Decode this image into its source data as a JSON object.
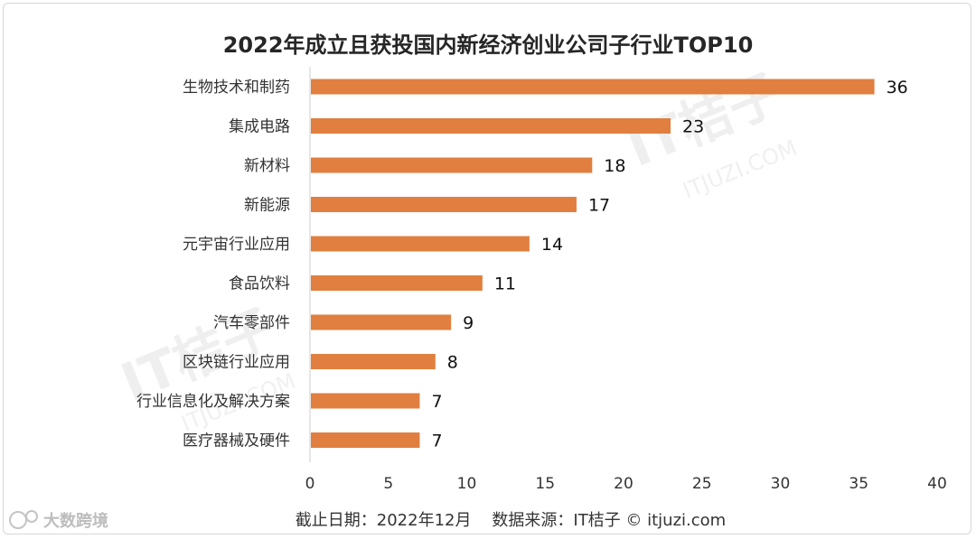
{
  "chart_data": {
    "type": "bar",
    "orientation": "horizontal",
    "title": "2022年成立且获投国内新经济创业公司子行业TOP10",
    "categories": [
      "生物技术和制药",
      "集成电路",
      "新材料",
      "新能源",
      "元宇宙行业应用",
      "食品饮料",
      "汽车零部件",
      "区块链行业应用",
      "行业信息化及解决方案",
      "医疗器械及硬件"
    ],
    "values": [
      36,
      23,
      18,
      17,
      14,
      11,
      9,
      8,
      7,
      7
    ],
    "xlim": [
      0,
      40
    ],
    "xticks": [
      0,
      5,
      10,
      15,
      20,
      25,
      30,
      35,
      40
    ],
    "grid": false,
    "bar_color": "#E07F3F"
  },
  "footer": "截止日期：2022年12月    数据来源：IT桔子 © itjuzi.com",
  "watermark": {
    "logo": "IT桔子",
    "url": "ITJUZI.COM"
  },
  "corner_logo": {
    "text": "大数跨境",
    "icon": "brand-logo-icon"
  }
}
